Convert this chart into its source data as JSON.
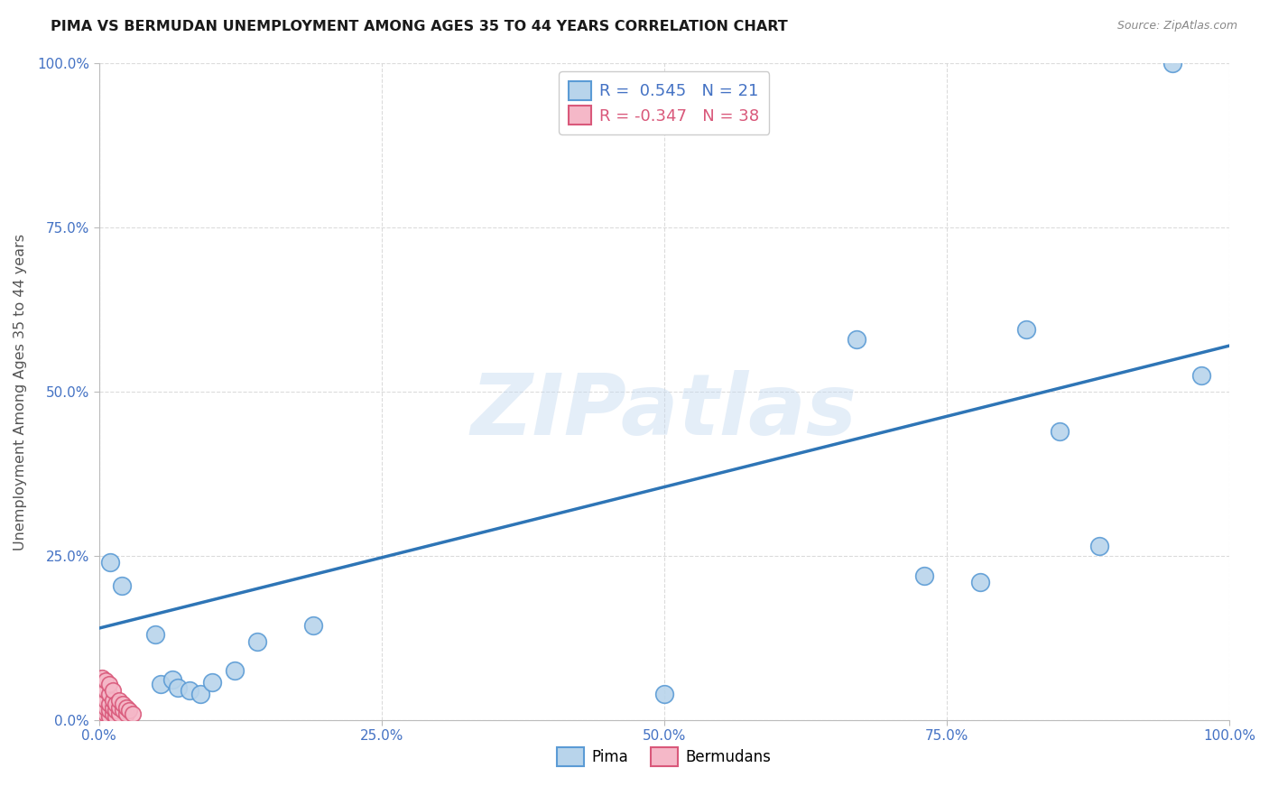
{
  "title": "PIMA VS BERMUDAN UNEMPLOYMENT AMONG AGES 35 TO 44 YEARS CORRELATION CHART",
  "source": "Source: ZipAtlas.com",
  "ylabel": "Unemployment Among Ages 35 to 44 years",
  "xlim": [
    0,
    1.0
  ],
  "ylim": [
    0,
    1.0
  ],
  "xticks": [
    0.0,
    0.25,
    0.5,
    0.75,
    1.0
  ],
  "yticks": [
    0.0,
    0.25,
    0.5,
    0.75,
    1.0
  ],
  "xticklabels": [
    "0.0%",
    "25.0%",
    "50.0%",
    "75.0%",
    "100.0%"
  ],
  "yticklabels": [
    "0.0%",
    "25.0%",
    "50.0%",
    "75.0%",
    "100.0%"
  ],
  "pima_color": "#b8d4eb",
  "pima_edge_color": "#5b9bd5",
  "bermuda_color": "#f5b8c8",
  "bermuda_edge_color": "#d9587a",
  "trend_color": "#2e75b6",
  "pima_R": 0.545,
  "pima_N": 21,
  "bermuda_R": -0.347,
  "bermuda_N": 38,
  "pima_scatter": [
    [
      0.01,
      0.24
    ],
    [
      0.02,
      0.205
    ],
    [
      0.05,
      0.13
    ],
    [
      0.055,
      0.055
    ],
    [
      0.065,
      0.062
    ],
    [
      0.07,
      0.05
    ],
    [
      0.08,
      0.045
    ],
    [
      0.09,
      0.04
    ],
    [
      0.1,
      0.058
    ],
    [
      0.12,
      0.075
    ],
    [
      0.14,
      0.12
    ],
    [
      0.19,
      0.145
    ],
    [
      0.5,
      0.04
    ],
    [
      0.67,
      0.58
    ],
    [
      0.73,
      0.22
    ],
    [
      0.78,
      0.21
    ],
    [
      0.82,
      0.595
    ],
    [
      0.85,
      0.44
    ],
    [
      0.885,
      0.265
    ],
    [
      0.95,
      1.0
    ],
    [
      0.975,
      0.525
    ]
  ],
  "bermuda_scatter": [
    [
      0.0,
      0.0
    ],
    [
      0.0,
      0.01
    ],
    [
      0.0,
      0.02
    ],
    [
      0.0,
      0.03
    ],
    [
      0.0,
      0.04
    ],
    [
      0.0,
      0.05
    ],
    [
      0.0,
      0.06
    ],
    [
      0.003,
      0.01
    ],
    [
      0.003,
      0.02
    ],
    [
      0.003,
      0.035
    ],
    [
      0.003,
      0.05
    ],
    [
      0.003,
      0.065
    ],
    [
      0.006,
      0.01
    ],
    [
      0.006,
      0.02
    ],
    [
      0.006,
      0.03
    ],
    [
      0.006,
      0.045
    ],
    [
      0.006,
      0.06
    ],
    [
      0.009,
      0.005
    ],
    [
      0.009,
      0.015
    ],
    [
      0.009,
      0.025
    ],
    [
      0.009,
      0.04
    ],
    [
      0.009,
      0.055
    ],
    [
      0.012,
      0.01
    ],
    [
      0.012,
      0.02
    ],
    [
      0.012,
      0.03
    ],
    [
      0.012,
      0.045
    ],
    [
      0.015,
      0.005
    ],
    [
      0.015,
      0.015
    ],
    [
      0.015,
      0.025
    ],
    [
      0.018,
      0.01
    ],
    [
      0.018,
      0.02
    ],
    [
      0.018,
      0.03
    ],
    [
      0.021,
      0.015
    ],
    [
      0.021,
      0.025
    ],
    [
      0.024,
      0.01
    ],
    [
      0.024,
      0.02
    ],
    [
      0.027,
      0.015
    ],
    [
      0.03,
      0.01
    ]
  ],
  "trend_x_start": 0.0,
  "trend_y_start": 0.14,
  "trend_x_end": 1.0,
  "trend_y_end": 0.57,
  "watermark": "ZIPatlas",
  "background_color": "#ffffff",
  "grid_color": "#d8d8d8",
  "title_color": "#1a1a1a",
  "axis_label_color": "#555555",
  "tick_color": "#4472c4",
  "stat_R_pima_color": "#4472c4",
  "stat_R_bermuda_color": "#d9587a",
  "stat_N_color": "#4472c4"
}
